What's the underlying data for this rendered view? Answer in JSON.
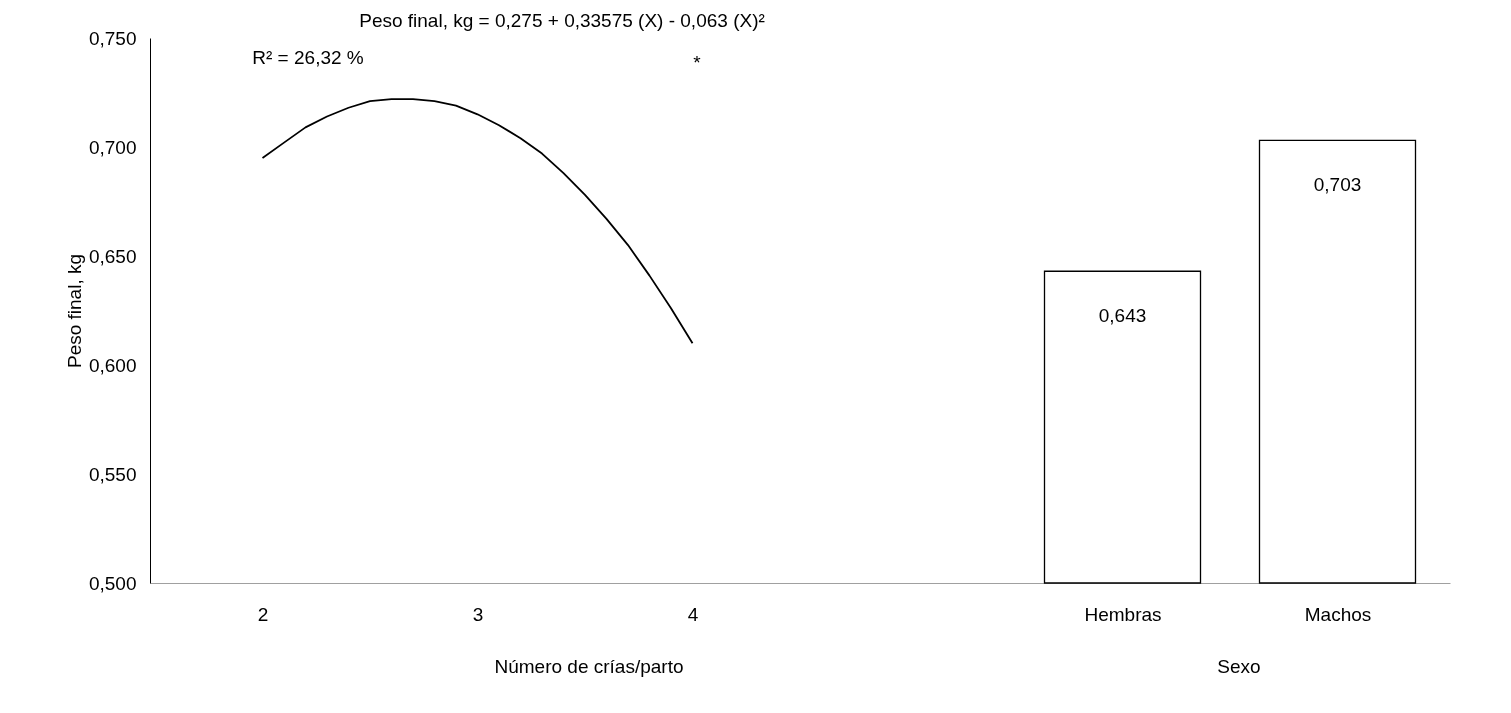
{
  "chart_data": {
    "type": "bar",
    "ylabel": "Peso final, kg",
    "xlim": [
      1.5,
      7.5
    ],
    "xticks": [
      {
        "value": 2,
        "label": "2"
      },
      {
        "value": 3,
        "label": "3"
      },
      {
        "value": 4,
        "label": "4"
      },
      {
        "value": 6,
        "label": "Hembras"
      },
      {
        "value": 7,
        "label": "Machos"
      }
    ],
    "ylim": [
      0.5,
      0.75
    ],
    "yticks": [
      {
        "value": 0.5,
        "label": "0,500"
      },
      {
        "value": 0.55,
        "label": "0,550"
      },
      {
        "value": 0.6,
        "label": "0,600"
      },
      {
        "value": 0.65,
        "label": "0,650"
      },
      {
        "value": 0.7,
        "label": "0,700"
      },
      {
        "value": 0.75,
        "label": "0,750"
      }
    ],
    "grid": false,
    "series": [
      {
        "type": "line",
        "color": "#000000",
        "x": [
          2.0,
          2.1,
          2.2,
          2.3,
          2.4,
          2.5,
          2.6,
          2.7,
          2.8,
          2.9,
          3.0,
          3.1,
          3.2,
          3.3,
          3.4,
          3.5,
          3.6,
          3.7,
          3.8,
          3.9,
          4.0
        ],
        "values": [
          0.695,
          0.702,
          0.709,
          0.714,
          0.718,
          0.721,
          0.722,
          0.722,
          0.721,
          0.719,
          0.715,
          0.71,
          0.704,
          0.697,
          0.688,
          0.678,
          0.667,
          0.655,
          0.641,
          0.626,
          0.61
        ]
      },
      {
        "x": [
          6,
          7
        ],
        "values": [
          0.643,
          0.703
        ],
        "colors": [
          "#ffffff",
          "#ffffff"
        ],
        "value_labels": [
          "0,643",
          "0,703"
        ]
      }
    ],
    "annotations": [
      "Peso final, kg = 0,275 + 0,33575 (X) - 0,063 (X)²",
      "R² = 26,32 %",
      "*",
      "Número de crías/parto",
      "Sexo"
    ]
  }
}
